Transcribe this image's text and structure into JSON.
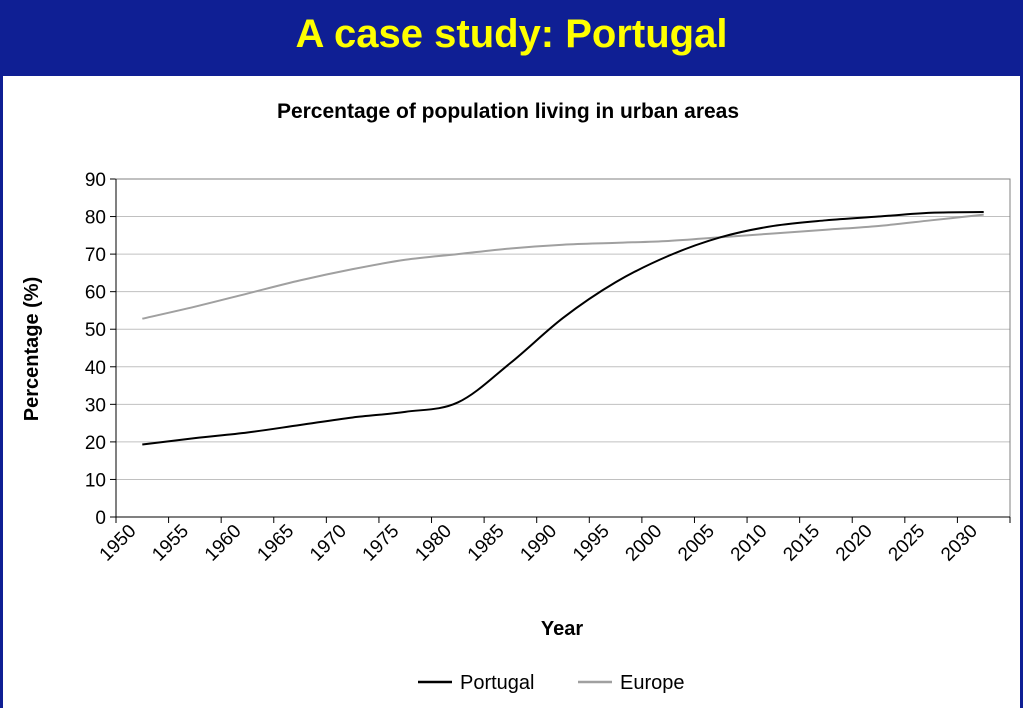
{
  "slide": {
    "title": "A case study: Portugal",
    "header_color": "#0f1f94",
    "title_color": "#ffff00"
  },
  "chart_data": {
    "type": "line",
    "title": "Percentage of population living in urban areas",
    "xlabel": "Year",
    "ylabel": "Percentage (%)",
    "ylim": [
      0,
      90
    ],
    "yticks": [
      0,
      10,
      20,
      30,
      40,
      50,
      60,
      70,
      80,
      90
    ],
    "categories": [
      "1950",
      "1955",
      "1960",
      "1965",
      "1970",
      "1975",
      "1980",
      "1985",
      "1990",
      "1995",
      "2000",
      "2005",
      "2010",
      "2015",
      "2020",
      "2025",
      "2030"
    ],
    "grid": true,
    "legend_position": "bottom",
    "series": [
      {
        "name": "Portugal",
        "color": "#000000",
        "values": [
          19.3,
          21.0,
          22.5,
          24.5,
          26.5,
          28.0,
          30.5,
          41.0,
          53.0,
          62.5,
          69.5,
          74.5,
          77.5,
          79.0,
          80.0,
          81.0,
          81.2
        ]
      },
      {
        "name": "Europe",
        "color": "#a0a0a0",
        "values": [
          52.8,
          56.0,
          59.5,
          63.0,
          66.0,
          68.5,
          70.0,
          71.5,
          72.5,
          73.0,
          73.5,
          74.5,
          75.5,
          76.5,
          77.5,
          79.0,
          80.5
        ]
      }
    ]
  }
}
